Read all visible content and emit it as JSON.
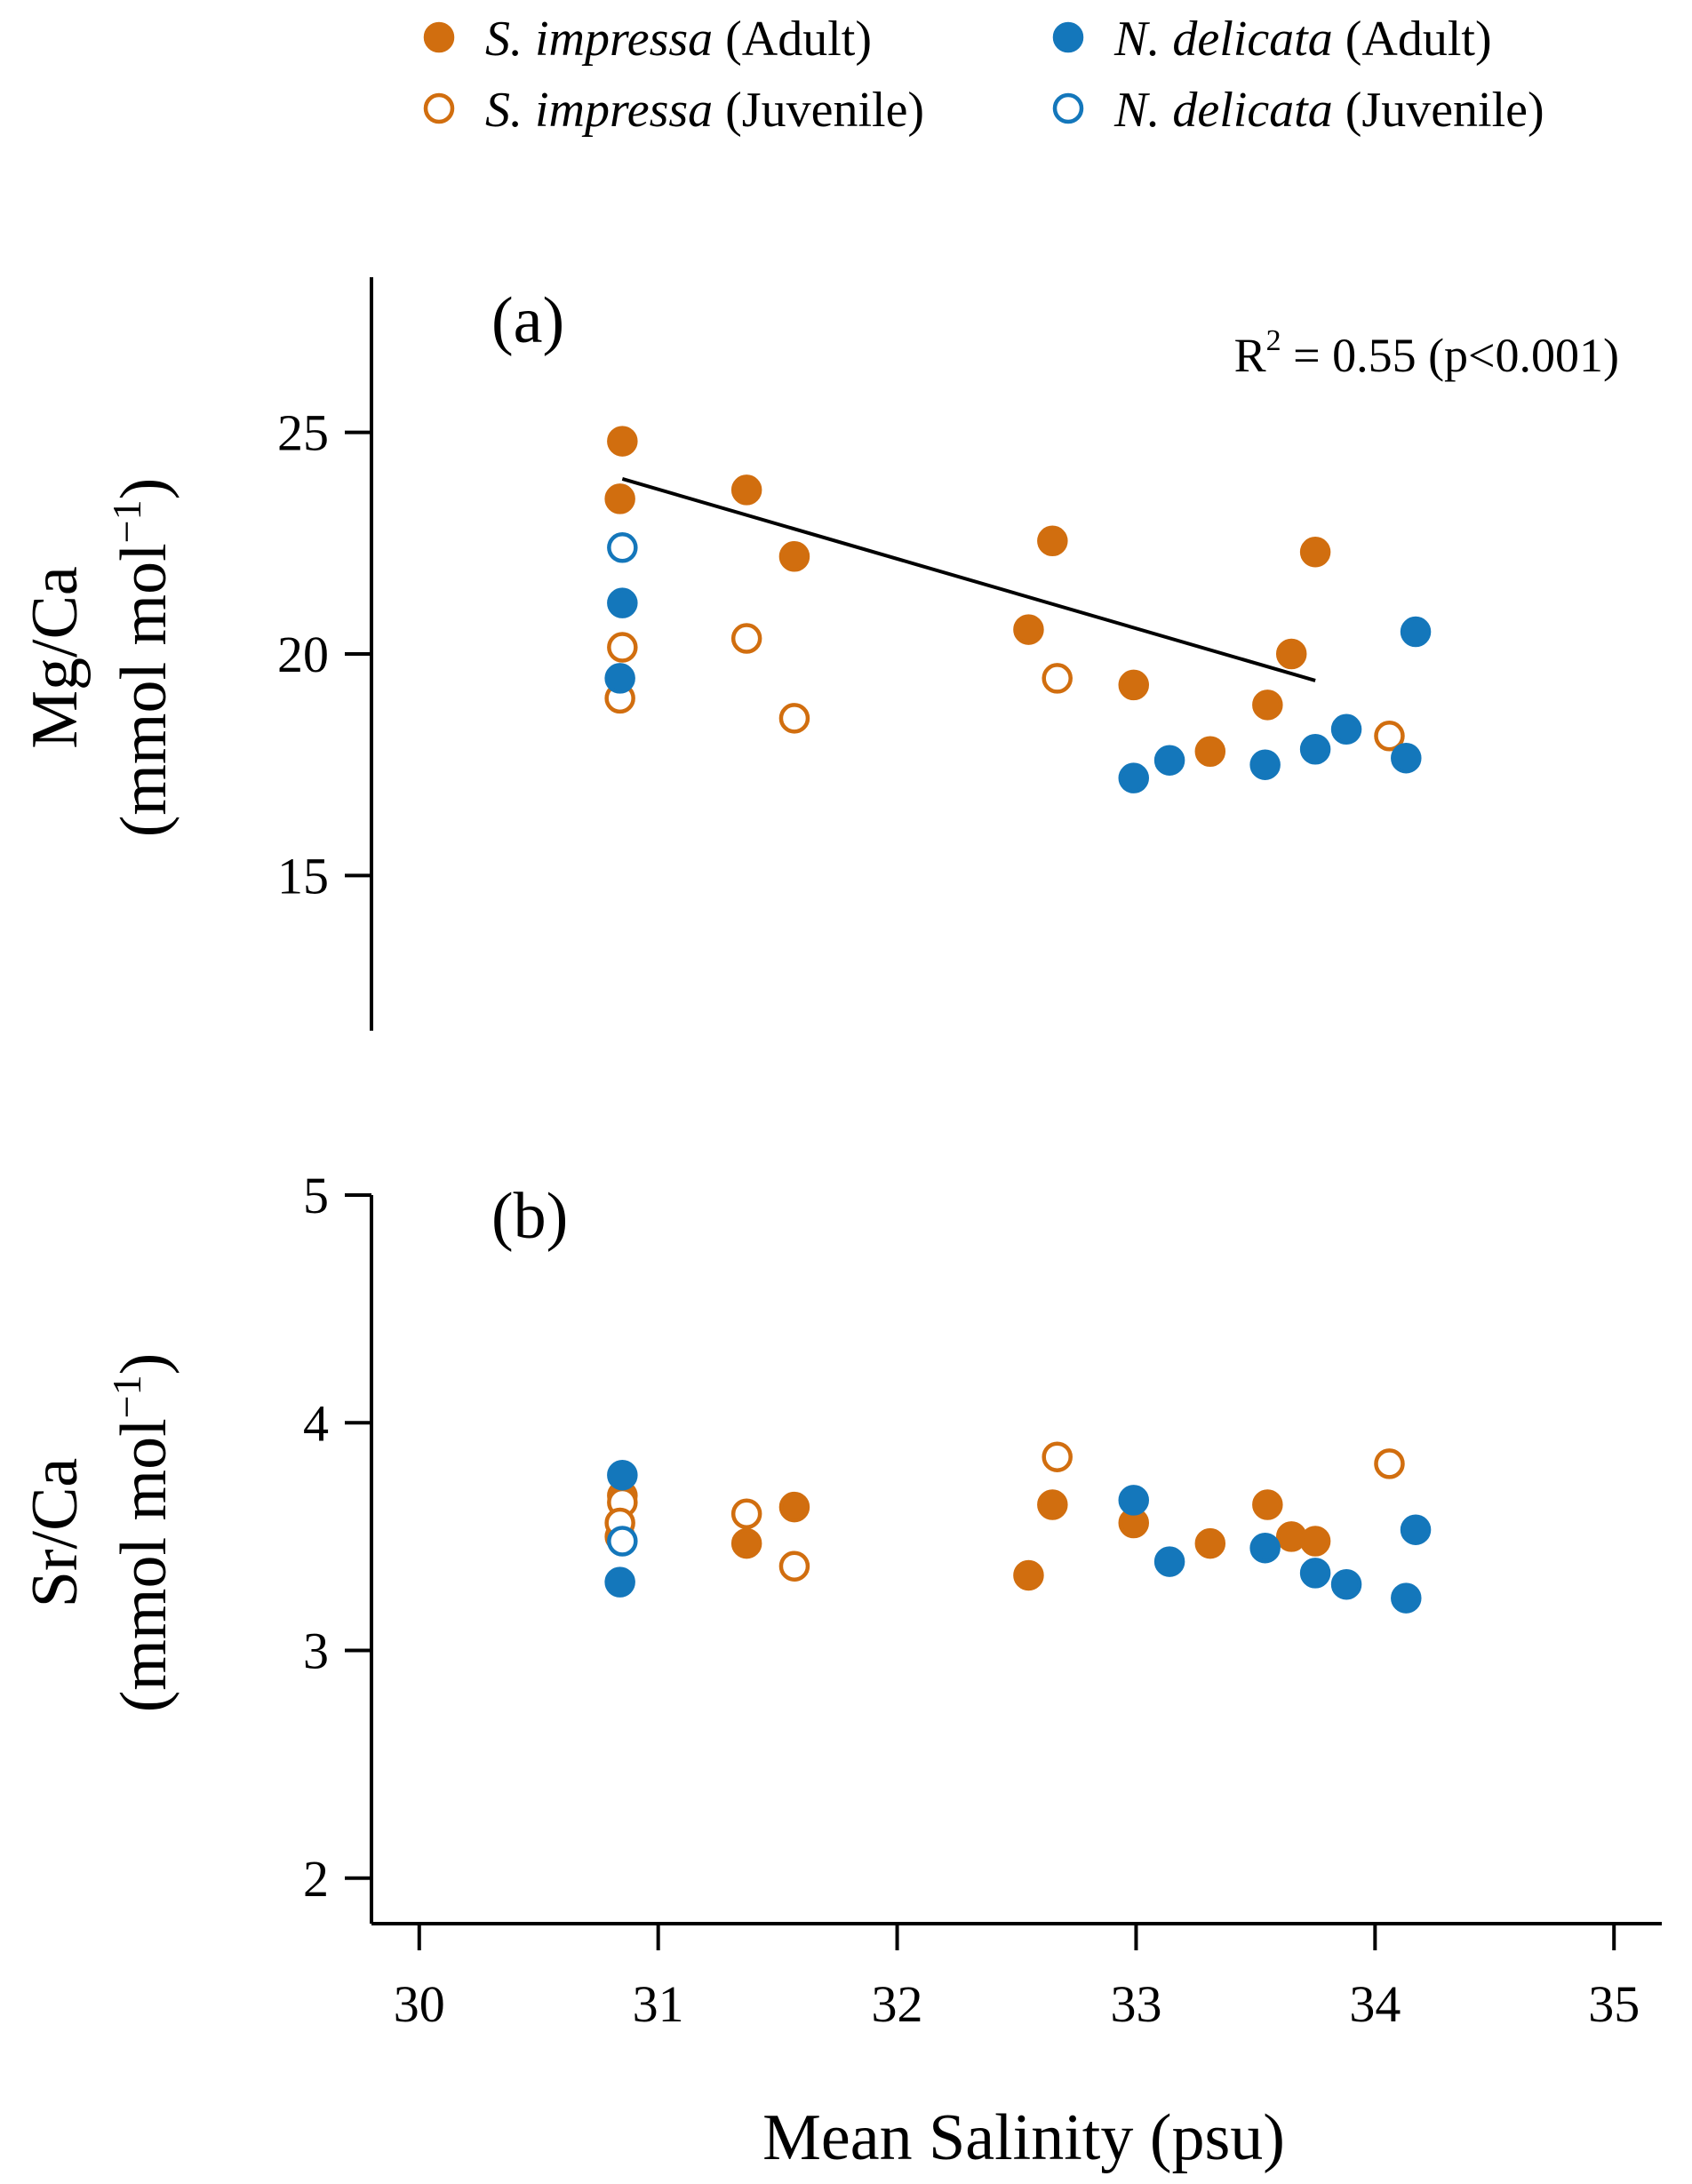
{
  "chart_data": {
    "type": "scatter",
    "xlabel": "Mean Salinity (psu)",
    "xlim": [
      29.8,
      35.2
    ],
    "xticks": [
      30,
      31,
      32,
      33,
      34,
      35
    ],
    "xtick_labels": [
      "30",
      "31",
      "32",
      "33",
      "34",
      "35"
    ],
    "legend": {
      "placement": "top",
      "entries": [
        {
          "species": "S. impressa",
          "stage": "(Adult)",
          "color": "#d16e0f",
          "filled": true
        },
        {
          "species": "N. delicata",
          "stage": "(Adult)",
          "color": "#1477bb",
          "filled": true
        },
        {
          "species": "S. impressa",
          "stage": "(Juvenile)",
          "color": "#d16e0f",
          "filled": false
        },
        {
          "species": "N. delicata",
          "stage": "(Juvenile)",
          "color": "#1477bb",
          "filled": false
        }
      ]
    },
    "panels": [
      {
        "id": "a",
        "label": "(a)",
        "ylabel_line1": "Mg/Ca",
        "ylabel_line2": "(mmol mol",
        "ylabel_sup": "−1",
        "ylabel_close": ")",
        "ylim": [
          11.5,
          28.5
        ],
        "yticks": [
          15,
          20,
          25
        ],
        "ytick_labels": [
          "15",
          "20",
          "25"
        ],
        "annotation": {
          "prefix": "R",
          "sup": "2",
          "suffix": " = 0.55 (p<0.001)"
        },
        "trend_line": {
          "x": [
            30.85,
            33.75
          ],
          "y": [
            23.95,
            19.4
          ]
        },
        "series": [
          {
            "name": "S. impressa (Adult)",
            "color": "#d16e0f",
            "filled": true,
            "points": [
              [
                30.85,
                24.8
              ],
              [
                30.84,
                23.5
              ],
              [
                31.37,
                23.7
              ],
              [
                31.57,
                22.2
              ],
              [
                32.55,
                20.55
              ],
              [
                32.65,
                22.55
              ],
              [
                32.99,
                19.3
              ],
              [
                33.31,
                17.8
              ],
              [
                33.55,
                18.85
              ],
              [
                33.65,
                20.0
              ],
              [
                33.75,
                22.3
              ]
            ]
          },
          {
            "name": "S. impressa (Juvenile)",
            "color": "#d16e0f",
            "filled": false,
            "points": [
              [
                30.85,
                20.15
              ],
              [
                30.84,
                19.0
              ],
              [
                31.37,
                20.35
              ],
              [
                31.57,
                18.55
              ],
              [
                32.67,
                19.45
              ],
              [
                34.06,
                18.15
              ]
            ]
          },
          {
            "name": "N. delicata (Adult)",
            "color": "#1477bb",
            "filled": true,
            "points": [
              [
                30.85,
                21.15
              ],
              [
                30.84,
                19.45
              ],
              [
                32.99,
                17.2
              ],
              [
                33.14,
                17.6
              ],
              [
                33.54,
                17.5
              ],
              [
                33.75,
                17.85
              ],
              [
                33.88,
                18.3
              ],
              [
                34.13,
                17.65
              ],
              [
                34.17,
                20.5
              ]
            ]
          },
          {
            "name": "N. delicata (Juvenile)",
            "color": "#1477bb",
            "filled": false,
            "points": [
              [
                30.85,
                22.4
              ]
            ]
          }
        ]
      },
      {
        "id": "b",
        "label": "(b)",
        "ylabel_line1": "Sr/Ca",
        "ylabel_line2": "(mmol mol",
        "ylabel_sup": "−1",
        "ylabel_close": ")",
        "ylim": [
          1.8,
          5.0
        ],
        "yticks": [
          2,
          3,
          4,
          5
        ],
        "ytick_labels": [
          "2",
          "3",
          "4",
          "5"
        ],
        "series": [
          {
            "name": "S. impressa (Adult)",
            "color": "#d16e0f",
            "filled": true,
            "points": [
              [
                30.85,
                3.68
              ],
              [
                30.84,
                3.5
              ],
              [
                31.37,
                3.47
              ],
              [
                31.57,
                3.63
              ],
              [
                32.55,
                3.33
              ],
              [
                32.65,
                3.64
              ],
              [
                32.99,
                3.56
              ],
              [
                33.31,
                3.47
              ],
              [
                33.55,
                3.64
              ],
              [
                33.65,
                3.5
              ],
              [
                33.75,
                3.48
              ]
            ]
          },
          {
            "name": "S. impressa (Juvenile)",
            "color": "#d16e0f",
            "filled": false,
            "points": [
              [
                30.85,
                3.65
              ],
              [
                30.84,
                3.56
              ],
              [
                31.37,
                3.6
              ],
              [
                31.57,
                3.37
              ],
              [
                32.67,
                3.85
              ],
              [
                34.06,
                3.82
              ]
            ]
          },
          {
            "name": "N. delicata (Adult)",
            "color": "#1477bb",
            "filled": true,
            "points": [
              [
                30.85,
                3.77
              ],
              [
                30.84,
                3.3
              ],
              [
                32.99,
                3.66
              ],
              [
                33.14,
                3.39
              ],
              [
                33.54,
                3.45
              ],
              [
                33.75,
                3.34
              ],
              [
                33.88,
                3.29
              ],
              [
                34.13,
                3.23
              ],
              [
                34.17,
                3.53
              ]
            ]
          },
          {
            "name": "N. delicata (Juvenile)",
            "color": "#1477bb",
            "filled": false,
            "points": [
              [
                30.85,
                3.48
              ]
            ]
          }
        ]
      }
    ]
  }
}
